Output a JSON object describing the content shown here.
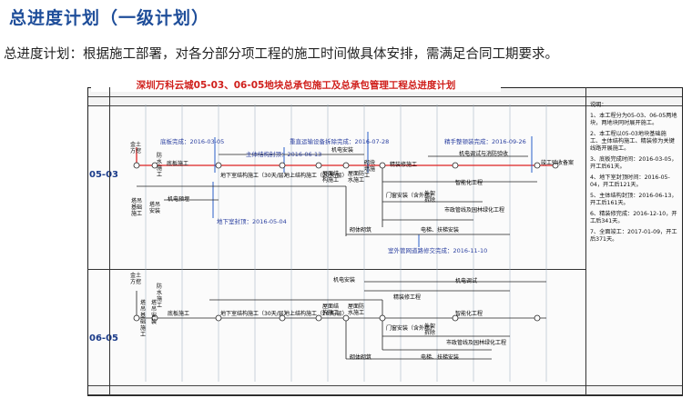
{
  "header": {
    "title": "总进度计划（一级计划）",
    "description": "总进度计划：根据施工部署，对各分部分项工程的施工时间做具体安排，需满足合同工期要求。"
  },
  "drawing": {
    "title": "深圳万科云城05-03、06-05地块总承包施工及总承包管理工程总进度计划",
    "sections": [
      "05-03",
      "06-05"
    ],
    "notes_title": "说明：",
    "notes": [
      "1、本工程分为05-03、06-05两地块，两地块同时展开施工。",
      "2、本工程以05-03地块基础施工、主体结构施工、精装修为关键线路开展施工。",
      "3、底板完成时间：2016-03-05，开工后61天。",
      "4、地下室封顶时间：2016-05-04，开工后121天。",
      "5、主体结构封顶：2016-06-13，开工后161天。",
      "6、精装修完成：2016-12-10，开工后341天。",
      "7、全面竣工：2017-01-09，开工后371天。"
    ],
    "milestones_top": [
      "底板完成：2016-03-05",
      "主体结构封顶：2016-06-13",
      "重直运输设备拆除完成：2016-07-28",
      "精手整顿装完成：2016-09-26",
      "地下室封顶：2016-05-04",
      "室外管网道路修交完成：2016-11-10"
    ],
    "tasks_top": [
      "金土方挖",
      "防水施工",
      "底板施工",
      "地下室结构施工（30天/层）",
      "地上结构施工（20天/层）",
      "屋面结构施工",
      "屋面防水施工",
      "机电安装",
      "砌块墙施工",
      "精装修施工",
      "机电调试与消防验收",
      "竣工验收备案",
      "门窗安装（含外墙）",
      "外架拆除",
      "智能化工程",
      "市政管线及园林绿化工程",
      "电梯、扶梯安装",
      "砌体砌筑",
      "机电预埋",
      "塔吊基础施工",
      "塔吊安装",
      "20",
      "60",
      "120",
      "170",
      "45",
      "30",
      "15"
    ],
    "tasks_bottom": [
      "金土方挖",
      "防水施工",
      "塔吊基础施工",
      "塔吊安装",
      "底板施工",
      "地下室结构施工（30天/层）",
      "地上结构施工（20天/层）",
      "屋面结构施工",
      "屋面防水施工",
      "机电安装",
      "机电调试",
      "精装修工程",
      "门窗安装（含外墙）",
      "外架拆除",
      "智能化工程",
      "市政管线及园林绿化工程",
      "电梯、扶梯安装",
      "砌体砌筑",
      "20",
      "50",
      "60",
      "125",
      "45",
      "15"
    ]
  }
}
